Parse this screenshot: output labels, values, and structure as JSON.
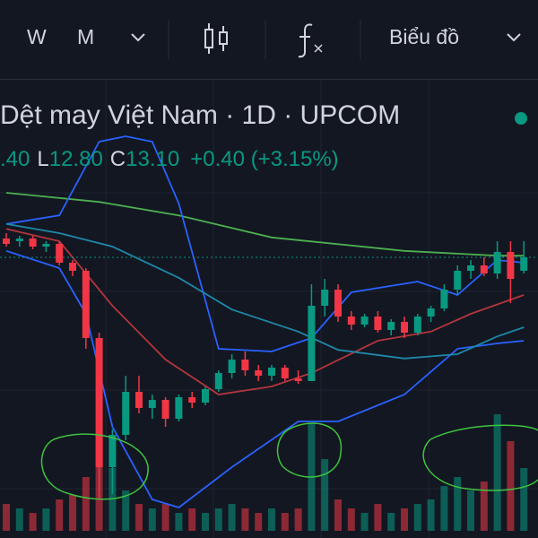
{
  "toolbar": {
    "items": [
      "W",
      "M",
      "Biểu đồ"
    ]
  },
  "legend": {
    "title": "Dệt may Việt Nam · 1D · UPCOM",
    "ohlc": [
      ".40",
      "L",
      "12.80",
      "C",
      "13.10",
      "+0.40 (+3.15%)"
    ]
  },
  "chart_data": {
    "type": "candlestick",
    "up_color": "#089981",
    "down_color": "#f23645",
    "open": [
      13.45,
      13.4,
      13.45,
      13.3,
      13.35,
      13.0,
      12.85,
      11.6,
      9.2,
      9.8,
      10.6,
      10.3,
      10.45,
      10.1,
      10.5,
      10.4,
      10.65,
      10.95,
      11.2,
      11.0,
      10.9,
      11.05,
      10.85,
      10.8,
      12.2,
      12.5,
      12.0,
      11.85,
      12.0,
      11.75,
      11.9,
      11.7,
      12.0,
      12.15,
      12.5,
      12.85,
      12.95,
      12.8,
      13.2,
      12.85
    ],
    "high": [
      13.55,
      13.5,
      13.5,
      13.4,
      13.4,
      13.05,
      12.9,
      11.7,
      9.9,
      10.9,
      10.9,
      10.55,
      10.5,
      10.55,
      10.6,
      10.7,
      11.0,
      11.3,
      11.35,
      11.1,
      11.1,
      11.1,
      11.0,
      12.6,
      12.7,
      12.6,
      12.1,
      12.05,
      12.1,
      11.95,
      12.0,
      12.05,
      12.2,
      12.6,
      12.95,
      13.05,
      13.1,
      13.4,
      13.4,
      13.4
    ],
    "low": [
      13.3,
      13.3,
      13.25,
      13.2,
      12.95,
      12.75,
      11.4,
      8.6,
      8.7,
      9.7,
      10.2,
      10.1,
      9.95,
      10.05,
      10.3,
      10.35,
      10.6,
      10.85,
      10.9,
      10.8,
      10.8,
      10.8,
      10.75,
      10.8,
      12.0,
      11.9,
      11.75,
      11.8,
      11.7,
      11.65,
      11.6,
      11.65,
      11.9,
      12.1,
      12.4,
      12.7,
      12.75,
      12.7,
      12.25,
      12.8
    ],
    "close": [
      13.35,
      13.45,
      13.3,
      13.35,
      13.0,
      12.85,
      11.6,
      9.2,
      9.8,
      10.6,
      10.3,
      10.45,
      10.1,
      10.5,
      10.4,
      10.65,
      10.95,
      11.2,
      11.0,
      10.9,
      11.05,
      10.85,
      10.8,
      12.2,
      12.5,
      12.0,
      11.85,
      12.0,
      11.75,
      11.9,
      11.7,
      12.0,
      12.15,
      12.5,
      12.85,
      12.95,
      12.8,
      13.2,
      12.7,
      13.1
    ],
    "volume": [
      30,
      25,
      20,
      25,
      35,
      40,
      60,
      110,
      70,
      45,
      30,
      25,
      30,
      20,
      25,
      20,
      25,
      30,
      25,
      20,
      25,
      20,
      25,
      120,
      80,
      35,
      25,
      20,
      30,
      20,
      25,
      30,
      35,
      50,
      60,
      45,
      55,
      130,
      100,
      70
    ],
    "series": [
      {
        "color": "#4caf50",
        "x": [
          0,
          7,
          13,
          20,
          30,
          37,
          39
        ],
        "values": [
          14.3,
          14.13,
          13.88,
          13.47,
          13.22,
          13.13,
          13.13
        ]
      },
      {
        "color": "#2962ff",
        "x": [
          0,
          4,
          7,
          9,
          11,
          13,
          16,
          20,
          23,
          26,
          31,
          34,
          37,
          39
        ],
        "values": [
          13.72,
          13.88,
          15.25,
          15.35,
          15.25,
          14.1,
          11.4,
          11.35,
          11.6,
          12.45,
          12.65,
          12.4,
          13.05,
          13.0
        ]
      },
      {
        "color": "#2962ff",
        "x": [
          0,
          4,
          6,
          8,
          11,
          13,
          17,
          22,
          25,
          30,
          34,
          37,
          39
        ],
        "values": [
          13.22,
          12.9,
          12.05,
          9.95,
          8.6,
          8.45,
          9.2,
          10.05,
          10.05,
          10.55,
          11.4,
          11.5,
          11.55
        ]
      },
      {
        "color": "#b2363c",
        "x": [
          0,
          4,
          8,
          12,
          16,
          20,
          23,
          28,
          32,
          35,
          39
        ],
        "values": [
          13.63,
          13.4,
          12.2,
          11.2,
          10.55,
          10.7,
          10.95,
          11.55,
          11.72,
          12.05,
          12.4
        ]
      },
      {
        "color": "#1e88a8",
        "x": [
          0,
          4,
          8,
          13,
          17,
          22,
          25,
          30,
          34,
          37,
          39
        ],
        "values": [
          13.72,
          13.55,
          13.3,
          12.72,
          12.13,
          11.72,
          11.38,
          11.22,
          11.3,
          11.63,
          11.8
        ]
      }
    ]
  }
}
